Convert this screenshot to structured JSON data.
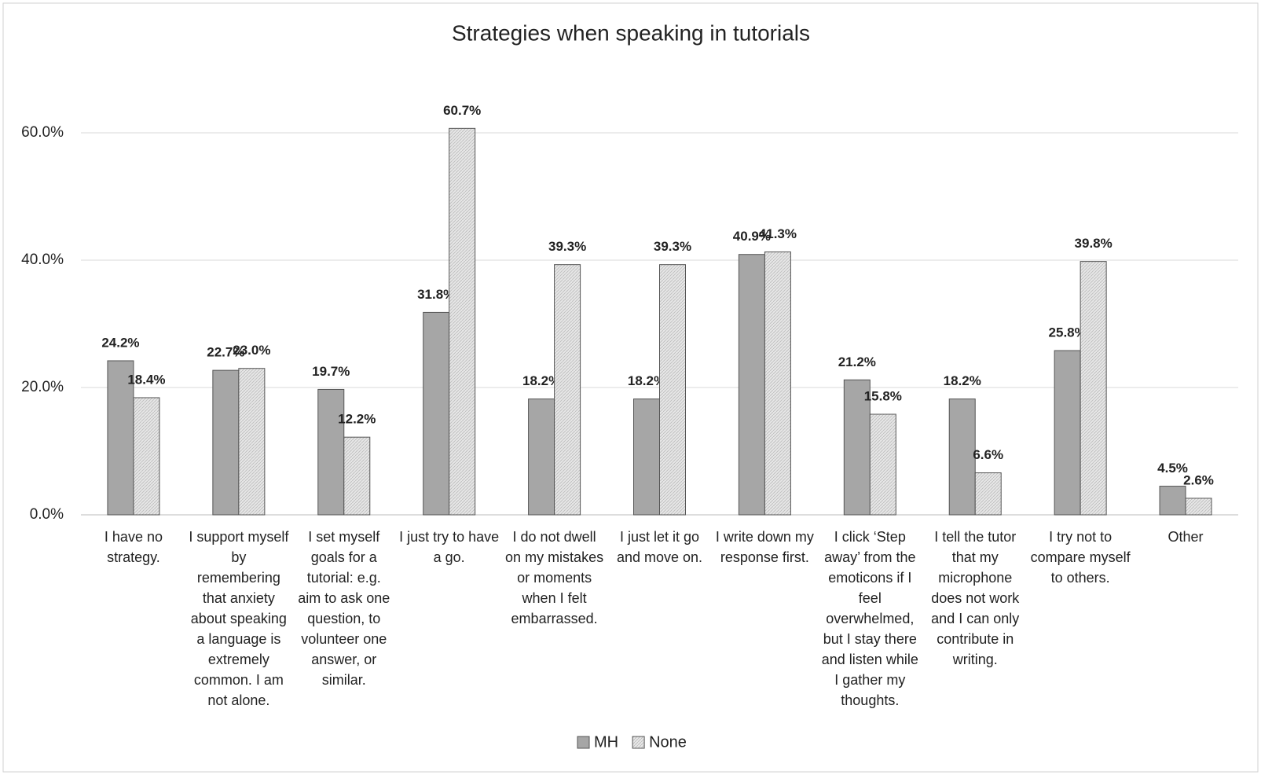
{
  "chart_data": {
    "type": "bar",
    "title": "Strategies when speaking in tutorials",
    "categories": [
      "I have no strategy.",
      "I support myself by remembering that anxiety about speaking a language is extremely common. I am not alone.",
      "I set myself goals for a tutorial: e.g. aim to ask one question, to volunteer one answer, or similar.",
      "I just try to have a go.",
      "I do not dwell on my mistakes or moments when I felt embarrassed.",
      "I just let it go and move on.",
      "I write down my response first.",
      "I click ‘Step away’ from the emoticons if I feel overwhelmed, but I stay there and listen while I gather my thoughts.",
      "I tell the tutor that my microphone does not work and I can only contribute in writing.",
      "I try not to compare myself to others.",
      "Other"
    ],
    "series": [
      {
        "name": "MH",
        "color": "#a6a6a6",
        "values": [
          24.2,
          22.7,
          19.7,
          31.8,
          18.2,
          18.2,
          40.9,
          21.2,
          18.2,
          25.8,
          4.5
        ],
        "value_labels": [
          "24.2%",
          "22.7%",
          "19.7%",
          "31.8%",
          "18.2%",
          "18.2%",
          "40.9%",
          "21.2%",
          "18.2%",
          "25.8%",
          "4.5%"
        ]
      },
      {
        "name": "None",
        "color": "#e6e6e6",
        "values": [
          18.4,
          23.0,
          12.2,
          60.7,
          39.3,
          39.3,
          41.3,
          15.8,
          6.6,
          39.8,
          2.6
        ],
        "value_labels": [
          "18.4%",
          "23.0%",
          "12.2%",
          "60.7%",
          "39.3%",
          "39.3%",
          "41.3%",
          "15.8%",
          "6.6%",
          "39.8%",
          "2.6%"
        ]
      }
    ],
    "ylim": [
      0,
      70
    ],
    "yticks": [
      {
        "value": 0,
        "label": "0.0%"
      },
      {
        "value": 20,
        "label": "20.0%"
      },
      {
        "value": 40,
        "label": "40.0%"
      },
      {
        "value": 60,
        "label": "60.0%"
      }
    ],
    "grid": true,
    "legend": "bottom"
  }
}
